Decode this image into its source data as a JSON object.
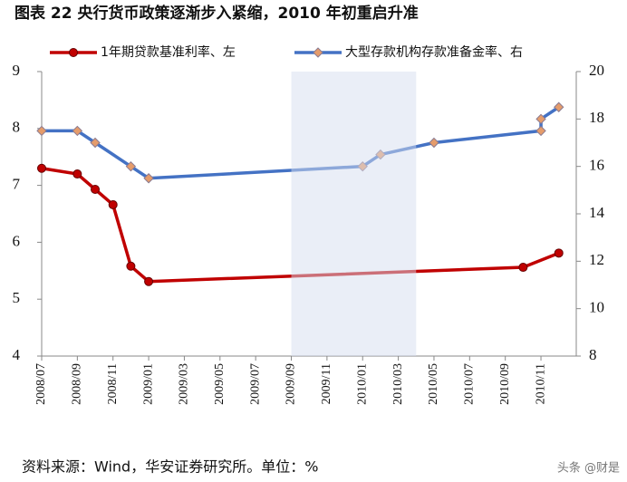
{
  "chart_data": {
    "type": "line",
    "title": "图表 22  央行货币政策逐渐步入紧缩，2010 年初重启升准",
    "source": "资料来源：Wind，华安证券研究所。单位：%",
    "watermark": "头条 @财是",
    "xticks": [
      "2008/07",
      "2008/09",
      "2008/11",
      "2009/01",
      "2009/03",
      "2009/05",
      "2009/07",
      "2009/09",
      "2009/11",
      "2010/01",
      "2010/03",
      "2010/05",
      "2010/07",
      "2010/09",
      "2010/11"
    ],
    "shade": [
      "2009/09",
      "2010/04"
    ],
    "ylim": [
      4,
      9
    ],
    "yticks": [
      4,
      5,
      6,
      7,
      8,
      9
    ],
    "y2lim": [
      8,
      20
    ],
    "y2ticks": [
      8,
      10,
      12,
      14,
      16,
      18,
      20
    ],
    "series": [
      {
        "name": "1年期贷款基准利率、左",
        "color": "#c00000",
        "marker": "circle",
        "x": [
          "2008/07",
          "2008/09",
          "2008/10",
          "2008/11",
          "2008/12",
          "2009/01",
          "2010/10",
          "2010/12"
        ],
        "values": [
          7.3,
          7.2,
          6.93,
          6.66,
          5.58,
          5.31,
          5.56,
          5.81
        ]
      },
      {
        "name": "大型存款机构存款准备金率、右",
        "color": "#4472c4",
        "marker": "diamond",
        "axis": "y2",
        "x": [
          "2008/07",
          "2008/09",
          "2008/10",
          "2008/12",
          "2009/01",
          "2010/01",
          "2010/02",
          "2010/05",
          "2010/11",
          "2010/11",
          "2010/12"
        ],
        "values": [
          17.5,
          17.5,
          17.0,
          16.0,
          15.5,
          16.0,
          16.5,
          17.0,
          17.5,
          18.0,
          18.5
        ]
      }
    ]
  }
}
